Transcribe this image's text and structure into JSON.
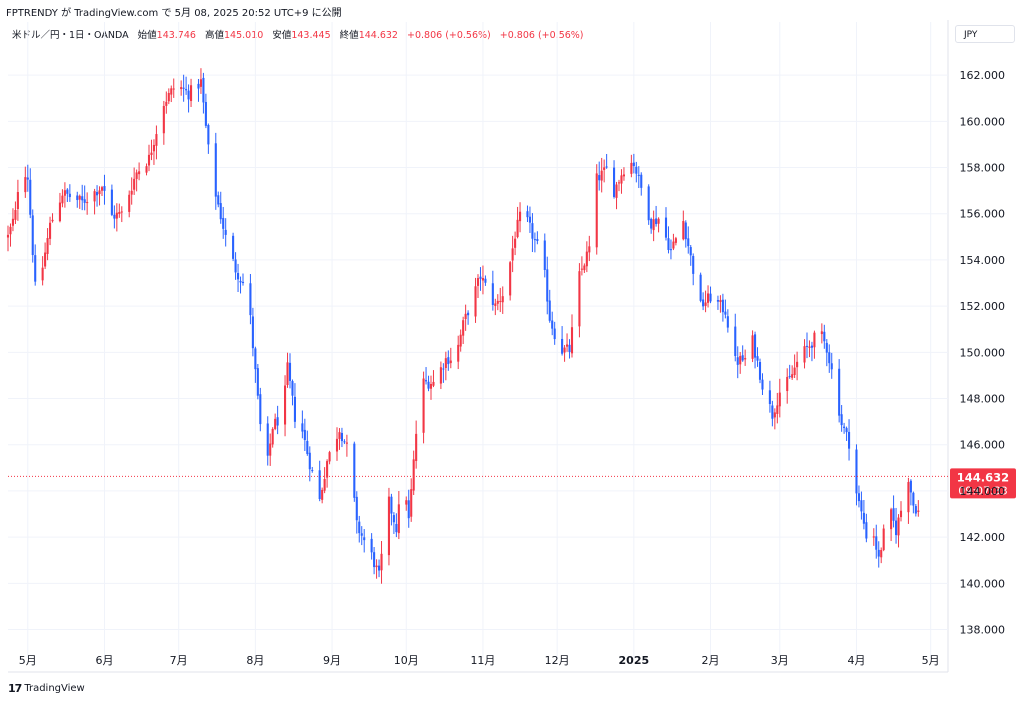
{
  "header": {
    "publisher_line": "FPTRENDY が TradingView.com で 5月 08, 2025 20:52 UTC+9 に公開",
    "symbol_line": "米ドル／円・1日・OANDA",
    "open_label": "始値",
    "open_value": "143.746",
    "high_label": "高値",
    "high_value": "145.010",
    "low_label": "安値",
    "low_value": "143.445",
    "close_label": "終値",
    "close_value": "144.632",
    "change": "+0.806 (+0.56%)",
    "change_repeat": "+0.806 (+0.56%)"
  },
  "currency_badge": "JPY",
  "price_tag": {
    "price": "144.632",
    "countdown": "09:07:33"
  },
  "footer": {
    "logo": "17",
    "brand": "TradingView"
  },
  "colors": {
    "up": "#f23645",
    "down": "#2962ff",
    "grid": "#f0f3fa",
    "axis_text": "#131722"
  },
  "chart_data": {
    "type": "candlestick",
    "y_ticks": [
      "162.000",
      "160.000",
      "158.000",
      "156.000",
      "154.000",
      "152.000",
      "150.000",
      "148.000",
      "146.000",
      "144.000",
      "142.000",
      "140.000",
      "138.000"
    ],
    "ylim": [
      137.2,
      164.3
    ],
    "x_labels": [
      {
        "label": "5月",
        "day": 8
      },
      {
        "label": "6月",
        "day": 39
      },
      {
        "label": "7月",
        "day": 69
      },
      {
        "label": "8月",
        "day": 100
      },
      {
        "label": "9月",
        "day": 131
      },
      {
        "label": "10月",
        "day": 161
      },
      {
        "label": "11月",
        "day": 192
      },
      {
        "label": "12月",
        "day": 222
      },
      {
        "label": "2025",
        "day": 253
      },
      {
        "label": "2月",
        "day": 284
      },
      {
        "label": "3月",
        "day": 312
      },
      {
        "label": "4月",
        "day": 343
      },
      {
        "label": "5月",
        "day": 373
      }
    ],
    "last_price": 144.632,
    "anchors": [
      [
        0,
        155.0
      ],
      [
        3,
        156.0
      ],
      [
        5,
        158.2
      ],
      [
        8,
        157.6
      ],
      [
        11,
        152.8
      ],
      [
        13,
        153.1
      ],
      [
        17,
        155.5
      ],
      [
        22,
        156.9
      ],
      [
        30,
        156.5
      ],
      [
        38,
        157.2
      ],
      [
        42,
        155.9
      ],
      [
        46,
        156.0
      ],
      [
        52,
        157.8
      ],
      [
        57,
        158.4
      ],
      [
        63,
        160.8
      ],
      [
        68,
        161.6
      ],
      [
        73,
        161.2
      ],
      [
        78,
        161.7
      ],
      [
        82,
        157.8
      ],
      [
        89,
        154.5
      ],
      [
        92,
        153.6
      ],
      [
        97,
        152.6
      ],
      [
        102,
        146.8
      ],
      [
        104,
        144.5
      ],
      [
        107,
        146.8
      ],
      [
        111,
        147.3
      ],
      [
        113,
        149.3
      ],
      [
        116,
        147.2
      ],
      [
        119,
        146.6
      ],
      [
        122,
        145.2
      ],
      [
        126,
        143.6
      ],
      [
        129,
        145.3
      ],
      [
        134,
        146.7
      ],
      [
        138,
        145.6
      ],
      [
        141,
        142.5
      ],
      [
        147,
        141.2
      ],
      [
        150,
        140.3
      ],
      [
        154,
        143.5
      ],
      [
        157,
        142.4
      ],
      [
        160,
        144.8
      ],
      [
        162,
        142.7
      ],
      [
        165,
        146.5
      ],
      [
        168,
        148.7
      ],
      [
        172,
        148.7
      ],
      [
        177,
        149.7
      ],
      [
        181,
        149.8
      ],
      [
        184,
        151.2
      ],
      [
        188,
        152.4
      ],
      [
        191,
        153.3
      ],
      [
        197,
        152.0
      ],
      [
        201,
        152.7
      ],
      [
        205,
        155.1
      ],
      [
        208,
        156.2
      ],
      [
        213,
        154.8
      ],
      [
        216,
        154.2
      ],
      [
        219,
        151.5
      ],
      [
        223,
        150.1
      ],
      [
        227,
        150.1
      ],
      [
        231,
        153.3
      ],
      [
        235,
        154.5
      ],
      [
        238,
        157.5
      ],
      [
        243,
        158.0
      ],
      [
        245,
        157.0
      ],
      [
        250,
        158.2
      ],
      [
        253,
        158.2
      ],
      [
        256,
        157.1
      ],
      [
        260,
        155.6
      ],
      [
        263,
        155.8
      ],
      [
        268,
        154.4
      ],
      [
        273,
        155.7
      ],
      [
        276,
        154.1
      ],
      [
        280,
        152.0
      ],
      [
        284,
        152.4
      ],
      [
        290,
        151.8
      ],
      [
        294,
        149.6
      ],
      [
        298,
        149.7
      ],
      [
        301,
        150.5
      ],
      [
        305,
        148.6
      ],
      [
        309,
        147.3
      ],
      [
        312,
        148.3
      ],
      [
        316,
        148.8
      ],
      [
        320,
        149.8
      ],
      [
        324,
        150.3
      ],
      [
        328,
        150.9
      ],
      [
        331,
        150.2
      ],
      [
        334,
        148.7
      ],
      [
        337,
        146.9
      ],
      [
        340,
        146.1
      ],
      [
        343,
        143.9
      ],
      [
        346,
        142.6
      ],
      [
        348,
        141.6
      ],
      [
        350,
        142.1
      ],
      [
        352,
        141.0
      ],
      [
        356,
        143.3
      ],
      [
        359,
        142.3
      ],
      [
        362,
        143.6
      ],
      [
        364,
        144.6
      ],
      [
        366,
        143.4
      ],
      [
        368,
        143.1
      ],
      [
        370,
        144.632
      ]
    ]
  }
}
